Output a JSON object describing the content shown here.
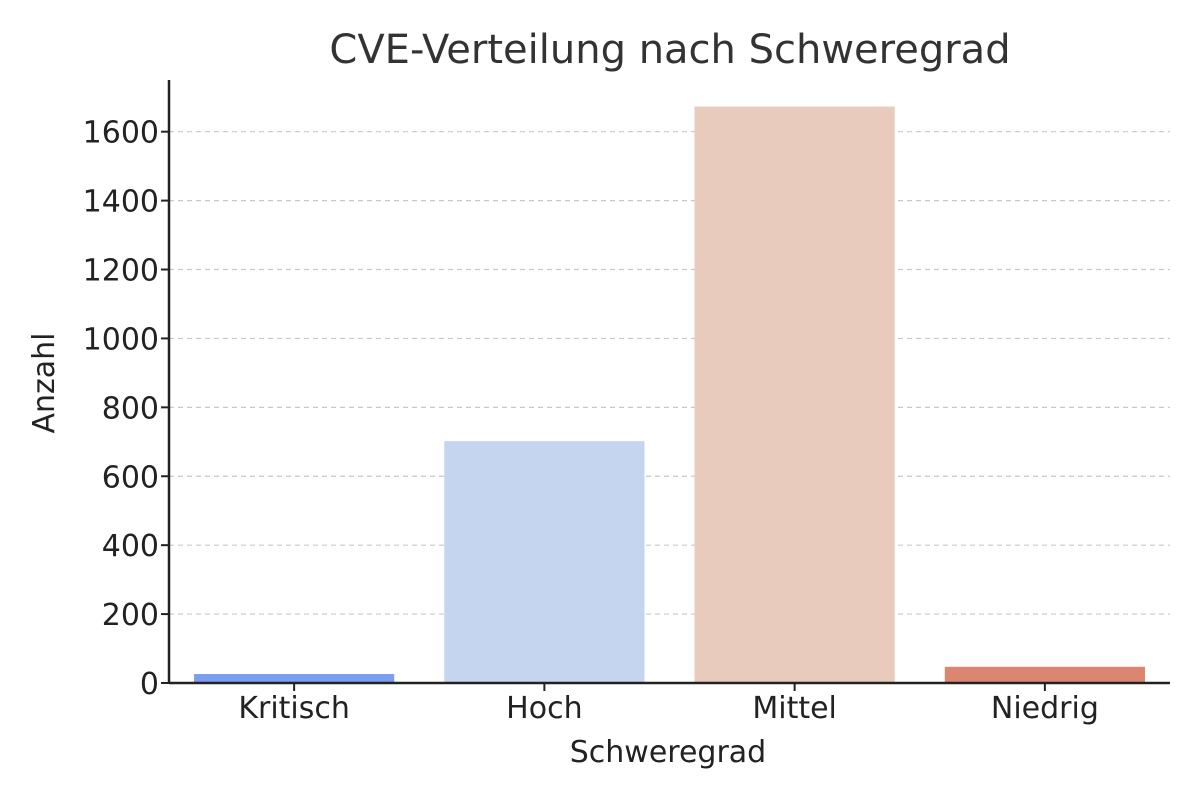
{
  "chart_data": {
    "type": "bar",
    "title": "CVE-Verteilung nach Schweregrad",
    "xlabel": "Schweregrad",
    "ylabel": "Anzahl",
    "categories": [
      "Kritisch",
      "Hoch",
      "Mittel",
      "Niedrig"
    ],
    "values": [
      26,
      702,
      1673,
      47
    ],
    "colors": [
      "#7b9ff0",
      "#c6d5ef",
      "#e8cbbd",
      "#dc8570"
    ],
    "ylim": [
      0,
      1750
    ],
    "yticks": [
      0,
      200,
      400,
      600,
      800,
      1000,
      1200,
      1400,
      1600
    ],
    "grid": true,
    "grid_axis": "y",
    "legend": false
  }
}
